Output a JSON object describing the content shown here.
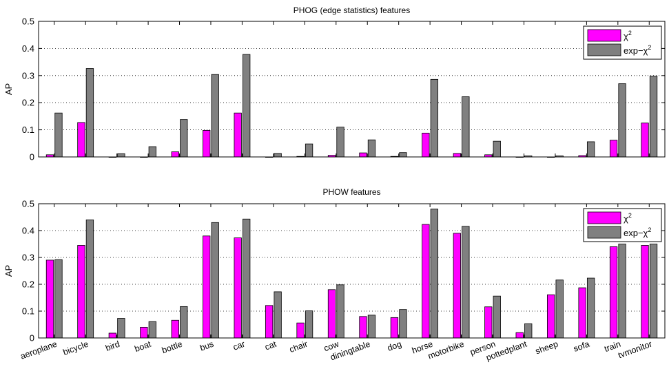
{
  "colors": {
    "chi2": "#ff00ff",
    "expchi2": "#808080"
  },
  "chart_data": [
    {
      "type": "bar",
      "title": "PHOG (edge statistics) features",
      "xlabel": "",
      "ylabel": "AP",
      "ylim": [
        0,
        0.5
      ],
      "yticks": [
        "0",
        "0.1",
        "0.2",
        "0.3",
        "0.4",
        "0.5"
      ],
      "grid": true,
      "legend_position": "top-right",
      "categories": [
        "aeroplane",
        "bicycle",
        "bird",
        "boat",
        "bottle",
        "bus",
        "car",
        "cat",
        "chair",
        "cow",
        "diningtable",
        "dog",
        "horse",
        "motorbike",
        "person",
        "pottedplant",
        "sheep",
        "sofa",
        "train",
        "tvmonitor"
      ],
      "series": [
        {
          "name": "χ2",
          "legend_base": "χ",
          "legend_sup": "2",
          "values": [
            0.008,
            0.127,
            0.0,
            0.0,
            0.019,
            0.098,
            0.162,
            0.0,
            0.002,
            0.006,
            0.015,
            0.002,
            0.088,
            0.013,
            0.008,
            0.0,
            0.0,
            0.005,
            0.062,
            0.125
          ]
        },
        {
          "name": "exp-χ2",
          "legend_base": "exp−χ",
          "legend_sup": "2",
          "values": [
            0.162,
            0.326,
            0.012,
            0.038,
            0.138,
            0.304,
            0.378,
            0.013,
            0.048,
            0.11,
            0.063,
            0.016,
            0.286,
            0.222,
            0.058,
            0.004,
            0.004,
            0.056,
            0.27,
            0.298
          ]
        }
      ]
    },
    {
      "type": "bar",
      "title": "PHOW features",
      "xlabel": "",
      "ylabel": "AP",
      "ylim": [
        0,
        0.5
      ],
      "yticks": [
        "0",
        "0.1",
        "0.2",
        "0.3",
        "0.4",
        "0.5"
      ],
      "grid": true,
      "legend_position": "top-right",
      "categories": [
        "aeroplane",
        "bicycle",
        "bird",
        "boat",
        "bottle",
        "bus",
        "car",
        "cat",
        "chair",
        "cow",
        "diningtable",
        "dog",
        "horse",
        "motorbike",
        "person",
        "pottedplant",
        "sheep",
        "sofa",
        "train",
        "tvmonitor"
      ],
      "series": [
        {
          "name": "χ2",
          "legend_base": "χ",
          "legend_sup": "2",
          "values": [
            0.29,
            0.345,
            0.018,
            0.04,
            0.066,
            0.38,
            0.373,
            0.121,
            0.056,
            0.18,
            0.08,
            0.076,
            0.423,
            0.39,
            0.116,
            0.02,
            0.161,
            0.187,
            0.34,
            0.345
          ]
        },
        {
          "name": "exp-χ2",
          "legend_base": "exp−χ",
          "legend_sup": "2",
          "values": [
            0.292,
            0.44,
            0.073,
            0.061,
            0.117,
            0.43,
            0.443,
            0.172,
            0.101,
            0.198,
            0.085,
            0.106,
            0.48,
            0.416,
            0.156,
            0.053,
            0.216,
            0.223,
            0.35,
            0.35
          ]
        }
      ]
    }
  ]
}
